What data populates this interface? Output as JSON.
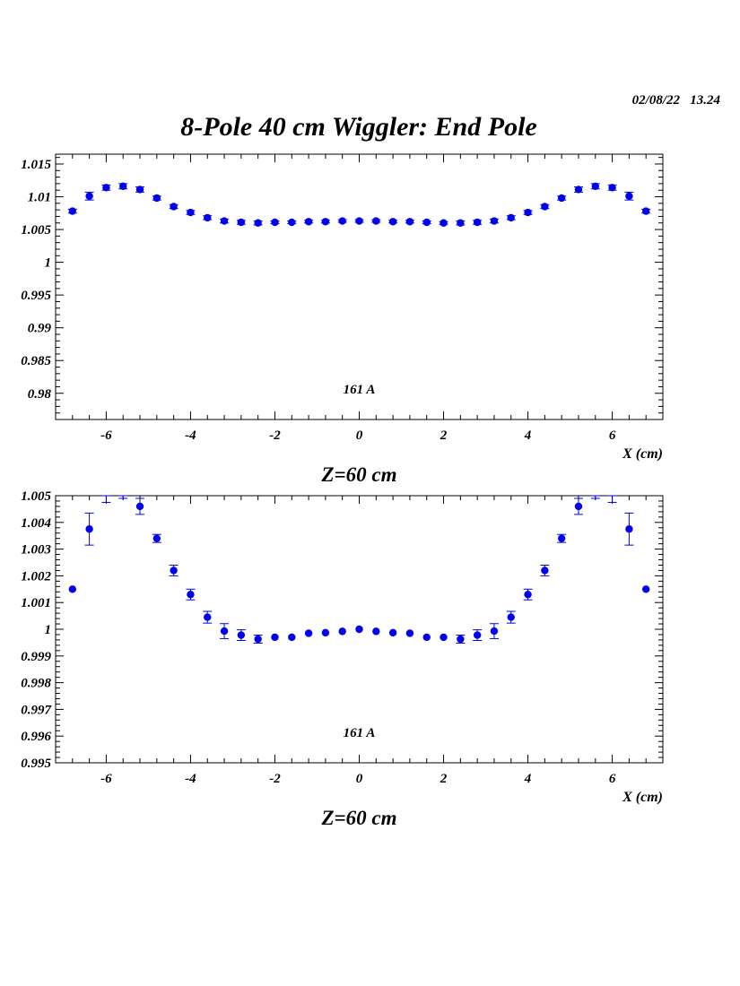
{
  "header": {
    "stamp": "02/08/22   13.24",
    "title": "8-Pole 40 cm Wiggler: End Pole"
  },
  "colors": {
    "marker": "#0000ee",
    "axis": "#000000"
  },
  "chart_data": [
    {
      "type": "scatter",
      "title": "Z=60 cm",
      "xlabel": "X (cm)",
      "ylabel": "",
      "annotation": "161 A",
      "xlim": [
        -7.2,
        7.2
      ],
      "ylim": [
        0.976,
        1.0165
      ],
      "x_ticks": [
        -6,
        -4,
        -2,
        0,
        2,
        4,
        6
      ],
      "x_tick_labels": [
        "-6",
        "-4",
        "-2",
        "0",
        "2",
        "4",
        "6"
      ],
      "y_ticks": [
        0.98,
        0.985,
        0.99,
        0.995,
        1,
        1.005,
        1.01,
        1.015
      ],
      "y_tick_labels": [
        "0.98",
        "0.985",
        "0.99",
        "0.995",
        "1",
        "1.005",
        "1.01",
        "1.015"
      ],
      "grid": false,
      "series": [
        {
          "x": [
            -6.8,
            -6.4,
            -6.0,
            -5.6,
            -5.2,
            -4.8,
            -4.4,
            -4.0,
            -3.6,
            -3.2,
            -2.8,
            -2.4,
            -2.0,
            -1.6,
            -1.2,
            -0.8,
            -0.4,
            0.0,
            0.4,
            0.8,
            1.2,
            1.6,
            2.0,
            2.4,
            2.8,
            3.2,
            3.6,
            4.0,
            4.4,
            4.8,
            5.2,
            5.6,
            6.0,
            6.4,
            6.8
          ],
          "y": [
            1.0078,
            1.0101,
            1.0114,
            1.0116,
            1.0111,
            1.0098,
            1.0085,
            1.0076,
            1.0068,
            1.0063,
            1.0061,
            1.006,
            1.0061,
            1.0061,
            1.0062,
            1.0062,
            1.0063,
            1.0063,
            1.0063,
            1.0062,
            1.0062,
            1.0061,
            1.006,
            1.006,
            1.0061,
            1.0063,
            1.0068,
            1.0076,
            1.0085,
            1.0098,
            1.0111,
            1.0116,
            1.0114,
            1.0101,
            1.0078
          ],
          "err": [
            0.0003,
            0.0006,
            0.0004,
            0.0004,
            0.0004,
            0.0003,
            0.0003,
            0.0003,
            0.0003,
            0.0003,
            0.0003,
            0.0003,
            0.0002,
            0.0002,
            0.0002,
            0.0002,
            0.0002,
            0.0002,
            0.0002,
            0.0002,
            0.0002,
            0.0002,
            0.0002,
            0.0003,
            0.0003,
            0.0003,
            0.0003,
            0.0003,
            0.0003,
            0.0003,
            0.0004,
            0.0004,
            0.0004,
            0.0006,
            0.0003
          ]
        }
      ]
    },
    {
      "type": "scatter",
      "title": "Z=60 cm",
      "xlabel": "X (cm)",
      "ylabel": "",
      "annotation": "161 A",
      "xlim": [
        -7.2,
        7.2
      ],
      "ylim": [
        0.995,
        1.005
      ],
      "x_ticks": [
        -6,
        -4,
        -2,
        0,
        2,
        4,
        6
      ],
      "x_tick_labels": [
        "-6",
        "-4",
        "-2",
        "0",
        "2",
        "4",
        "6"
      ],
      "y_ticks": [
        0.995,
        0.996,
        0.997,
        0.998,
        0.999,
        1,
        1.001,
        1.002,
        1.003,
        1.004,
        1.005
      ],
      "y_tick_labels": [
        "0.995",
        "0.996",
        "0.997",
        "0.998",
        "0.999",
        "1",
        "1.001",
        "1.002",
        "1.003",
        "1.004",
        "1.005"
      ],
      "grid": false,
      "series": [
        {
          "x": [
            -6.8,
            -6.4,
            -6.0,
            -5.6,
            -5.2,
            -4.8,
            -4.4,
            -4.0,
            -3.6,
            -3.2,
            -2.8,
            -2.4,
            -2.0,
            -1.6,
            -1.2,
            -0.8,
            -0.4,
            0.0,
            0.4,
            0.8,
            1.2,
            1.6,
            2.0,
            2.4,
            2.8,
            3.2,
            3.6,
            4.0,
            4.4,
            4.8,
            5.2,
            5.6,
            6.0,
            6.4,
            6.8
          ],
          "y": [
            1.0015,
            1.00375,
            1.00505,
            1.0052,
            1.0046,
            1.0034,
            1.0022,
            1.0013,
            1.00045,
            0.99993,
            0.99978,
            0.99963,
            0.9997,
            0.9997,
            0.99985,
            0.99987,
            0.99992,
            1.0,
            0.99992,
            0.99987,
            0.99985,
            0.9997,
            0.9997,
            0.99963,
            0.99978,
            0.99993,
            1.00045,
            1.0013,
            1.0022,
            1.0034,
            1.0046,
            1.0052,
            1.00505,
            1.00375,
            1.0015
          ],
          "err": [
            0.0,
            0.0006,
            0.0003,
            0.0003,
            0.0003,
            0.00015,
            0.0002,
            0.0002,
            0.00022,
            0.00028,
            0.0002,
            0.00015,
            0.0,
            0.0,
            0.0,
            0.0,
            0.0,
            0.0,
            0.0,
            0.0,
            0.0,
            0.0,
            0.0,
            0.00015,
            0.0002,
            0.00028,
            0.00022,
            0.0002,
            0.0002,
            0.00015,
            0.0003,
            0.0003,
            0.0003,
            0.0006,
            0.0
          ]
        }
      ]
    }
  ]
}
